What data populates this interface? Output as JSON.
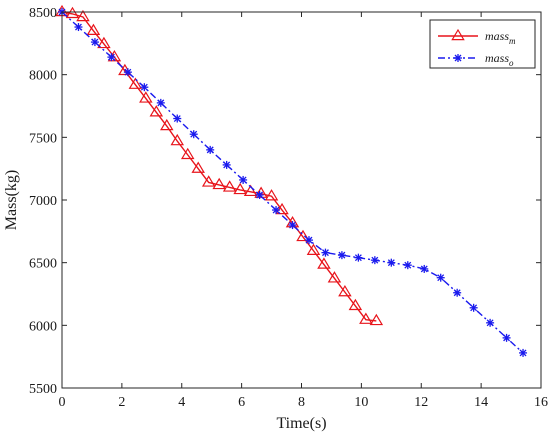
{
  "chart_data": {
    "type": "line",
    "title": "",
    "xlabel": "Time(s)",
    "ylabel": "Mass(kg)",
    "xlim": [
      0,
      16
    ],
    "ylim": [
      5500,
      8500
    ],
    "xticks": [
      0,
      2,
      4,
      6,
      8,
      10,
      12,
      14,
      16
    ],
    "yticks": [
      5500,
      6000,
      6500,
      7000,
      7500,
      8000,
      8500
    ],
    "grid": false,
    "legend_position": "top-right",
    "series": [
      {
        "name_base": "mass",
        "name_sub": "m",
        "color": "#e8141b",
        "line_style": "solid",
        "marker": "triangle",
        "x": [
          0,
          0.35,
          0.7,
          1.05,
          1.4,
          1.75,
          2.1,
          2.45,
          2.8,
          3.15,
          3.5,
          3.85,
          4.2,
          4.55,
          4.9,
          5.25,
          5.6,
          5.95,
          6.3,
          6.65,
          7.0,
          7.35,
          7.7,
          8.05,
          8.4,
          8.75,
          9.1,
          9.45,
          9.8,
          10.15,
          10.5
        ],
        "y": [
          8500,
          8485,
          8460,
          8350,
          8245,
          8140,
          8030,
          7920,
          7810,
          7700,
          7590,
          7470,
          7360,
          7250,
          7140,
          7120,
          7100,
          7080,
          7065,
          7050,
          7030,
          6920,
          6815,
          6705,
          6595,
          6485,
          6375,
          6265,
          6155,
          6045,
          6035
        ]
      },
      {
        "name_base": "mass",
        "name_sub": "o",
        "color": "#1a1aee",
        "line_style": "dashdot",
        "marker": "asterisk",
        "x": [
          0,
          0.55,
          1.1,
          1.65,
          2.2,
          2.75,
          3.3,
          3.85,
          4.4,
          4.95,
          5.5,
          6.05,
          6.6,
          7.15,
          7.7,
          8.25,
          8.8,
          9.35,
          9.9,
          10.45,
          11.0,
          11.55,
          12.1,
          12.65,
          13.2,
          13.75,
          14.3,
          14.85,
          15.4
        ],
        "y": [
          8500,
          8380,
          8260,
          8140,
          8020,
          7900,
          7775,
          7650,
          7525,
          7400,
          7280,
          7160,
          7040,
          6920,
          6800,
          6680,
          6580,
          6560,
          6540,
          6520,
          6500,
          6480,
          6450,
          6380,
          6260,
          6140,
          6020,
          5900,
          5780
        ]
      }
    ]
  }
}
